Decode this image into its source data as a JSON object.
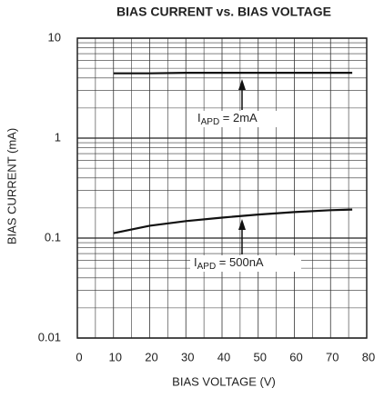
{
  "chart_data": {
    "type": "line",
    "title": "BIAS CURRENT vs. BIAS VOLTAGE",
    "x_label": "BIAS VOLTAGE (V)",
    "y_label": "BIAS CURRENT (mA)",
    "log_y": true,
    "grid": true,
    "xlim": [
      0,
      80
    ],
    "xticks": [
      0,
      10,
      20,
      30,
      40,
      50,
      60,
      70,
      80
    ],
    "xminorticks": [
      5,
      15,
      25,
      35,
      45,
      55,
      65,
      75
    ],
    "ylim": [
      0.01,
      10
    ],
    "yticks": [
      0.01,
      0.1,
      1,
      10
    ],
    "series": [
      {
        "color": "#111111",
        "x": [
          10,
          20,
          30,
          40,
          50,
          60,
          70,
          76
        ],
        "values": [
          4.45,
          4.45,
          4.5,
          4.5,
          4.5,
          4.5,
          4.5,
          4.5
        ]
      },
      {
        "color": "#111111",
        "x": [
          10,
          20,
          30,
          40,
          50,
          60,
          70,
          76
        ],
        "values": [
          0.112,
          0.133,
          0.148,
          0.16,
          0.172,
          0.182,
          0.19,
          0.193
        ]
      }
    ],
    "annotations": [
      {
        "prefix": "I",
        "sub": "APD",
        "suffix": " = 2mA"
      },
      {
        "prefix": "I",
        "sub": "APD",
        "suffix": " = 500nA"
      }
    ]
  }
}
